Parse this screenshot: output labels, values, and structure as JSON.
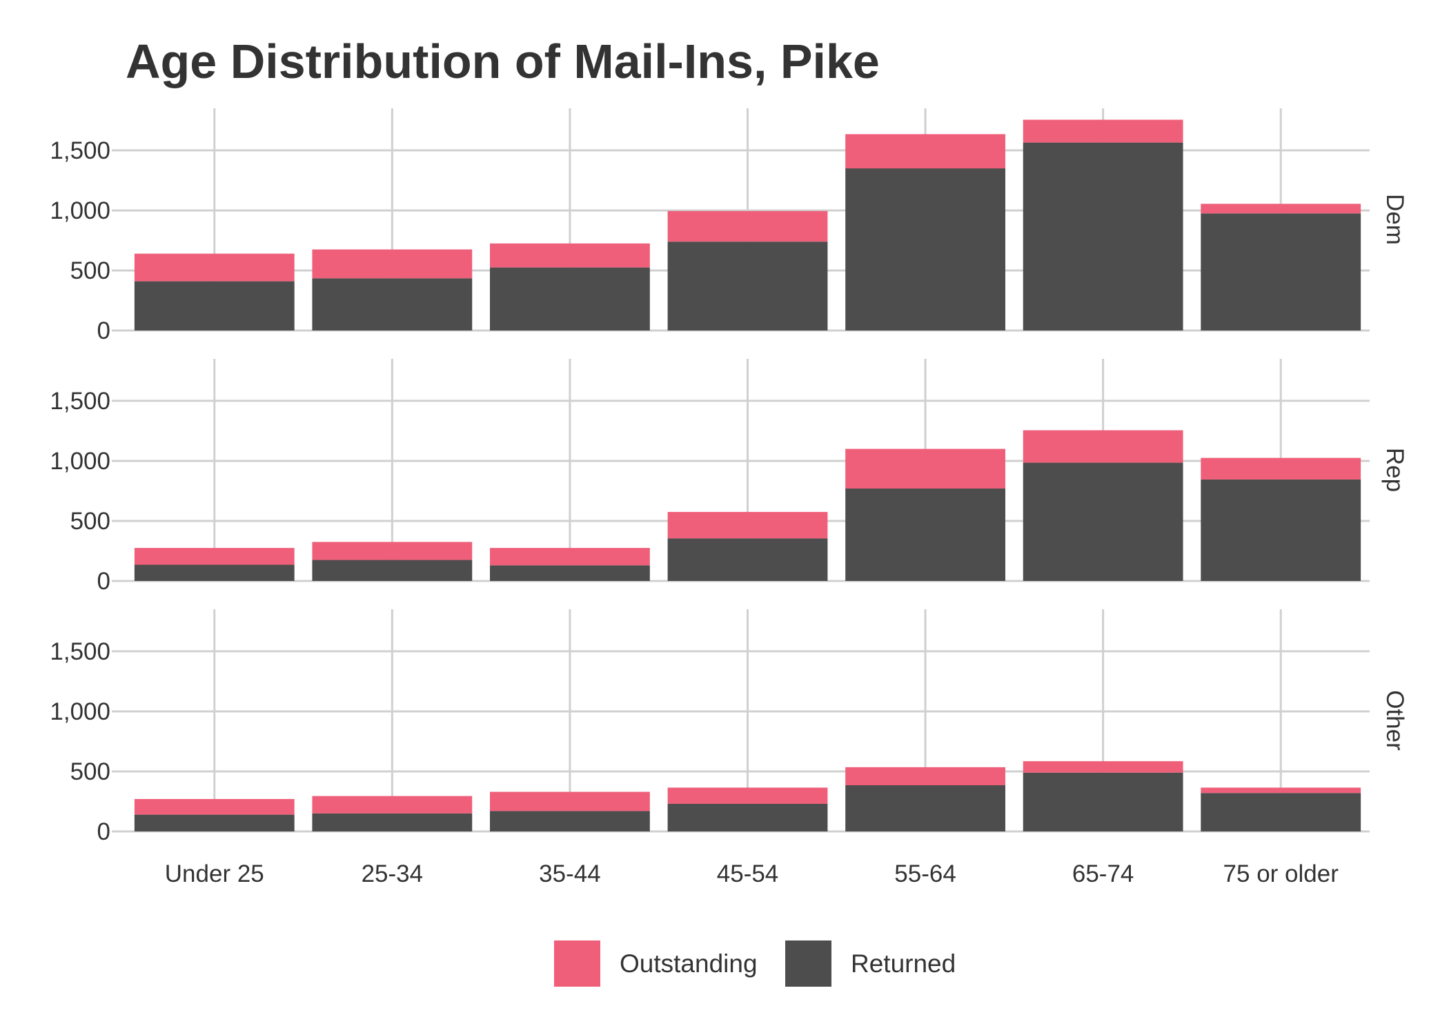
{
  "chart_data": {
    "type": "bar",
    "stacked": true,
    "title": "Age Distribution of Mail-Ins, Pike",
    "categories": [
      "Under 25",
      "25-34",
      "35-44",
      "45-54",
      "55-64",
      "65-74",
      "75 or older"
    ],
    "ylim": [
      0,
      1850
    ],
    "yticks": [
      0,
      500,
      1000,
      1500
    ],
    "ytick_labels": [
      "0",
      "500",
      "1,000",
      "1,500"
    ],
    "grid": true,
    "legend_position": "bottom",
    "colors": {
      "Outstanding": "#ef5f7a",
      "Returned": "#4d4d4d"
    },
    "legend": [
      "Outstanding",
      "Returned"
    ],
    "panels": [
      {
        "label": "Dem",
        "series": [
          {
            "name": "Returned",
            "values": [
              410,
              435,
              525,
              740,
              1350,
              1565,
              975
            ]
          },
          {
            "name": "Outstanding",
            "values": [
              230,
              240,
              200,
              255,
              285,
              190,
              80
            ]
          }
        ]
      },
      {
        "label": "Rep",
        "series": [
          {
            "name": "Returned",
            "values": [
              135,
              175,
              130,
              355,
              770,
              985,
              845
            ]
          },
          {
            "name": "Outstanding",
            "values": [
              140,
              150,
              145,
              220,
              330,
              270,
              180
            ]
          }
        ]
      },
      {
        "label": "Other",
        "series": [
          {
            "name": "Returned",
            "values": [
              140,
              150,
              170,
              230,
              385,
              490,
              320
            ]
          },
          {
            "name": "Outstanding",
            "values": [
              130,
              145,
              160,
              135,
              150,
              95,
              45
            ]
          }
        ]
      }
    ]
  }
}
